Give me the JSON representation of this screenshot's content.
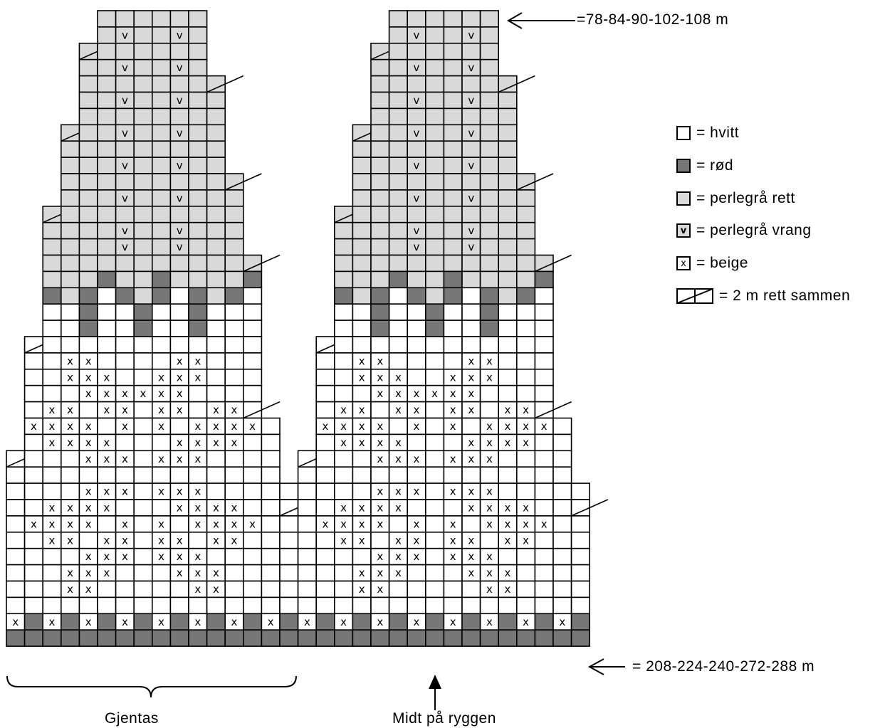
{
  "colors": {
    "white": "#ffffff",
    "red": "#777777",
    "grey": "#d9d9d9",
    "line": "#000000"
  },
  "top_count": "=78-84-90-102-108 m",
  "bottom_count": "=  208-224-240-272-288 m",
  "repeat_label": "Gjentas",
  "center_label": "Midt på ryggen",
  "legend": [
    {
      "symbol": "white",
      "text": "= hvitt"
    },
    {
      "symbol": "red",
      "text": "= rød"
    },
    {
      "symbol": "grey",
      "text": "= perlegrå rett"
    },
    {
      "symbol": "grey-v",
      "mark": "v",
      "text": "= perlegrå vrang"
    },
    {
      "symbol": "white-x",
      "mark": "x",
      "text": "= beige"
    },
    {
      "symbol": "decrease",
      "text": "= 2 m rett sammen"
    }
  ],
  "chart_data": {
    "type": "knitting-chart",
    "repeats": 2,
    "stitches_per_repeat": 16,
    "rows": 39,
    "cell_codes": {
      "W": "hvitt",
      "R": "rød",
      "G": "perlegrå rett",
      "V": "perlegrå vrang",
      "X": "beige",
      "D": "2 m rett sammen"
    },
    "pattern_rows_top_to_bottom": [
      "     GGGGGG     ",
      "     GVGGVG     ",
      "    DGGGGGG     ",
      "    GGVGGVG     ",
      "    GGGGGGGD    ",
      "    GGVGGVGG    ",
      "    GGGGGGGG    ",
      "   DGGVGGVGG    ",
      "   GGGGGGGGG    ",
      "   GGGVGGVGG    ",
      "   GGGGGGGGGD   ",
      "   GGGVGGVGGG   ",
      "  DGGGGGGGGGG   ",
      "  GGGGVGGVGGG   ",
      "  GGGGVGGVGGG   ",
      "  GGGGGGGGGGGD  ",
      "  GGGRGGRGGGGR  ",
      "  RGRWRGRWRGRW  ",
      "  WWRWWRWWRWWW  ",
      "  WWRWWRWWRWWW  ",
      " DWWWWWWWWWWWW  ",
      " WWXXWWWWXXWWW  ",
      " WWXXXWWXXXWWW  ",
      " WWWXXXXXXWWWW  ",
      " WXXWXXWXXWXXD  ",
      " XXXXWXWXWXXXXW ",
      " WXXXXWWWXXXXWW ",
      "DWWWXXXWXXXWWWW ",
      "WWWWWWWWWWWWWWW ",
      "WWWWXXXWXXXWWWWW",
      "WWXXXXWWWXXXXWWD",
      "WXXXXWXWXWXXXXWW",
      "WWXXWXXWXXWXXWWW",
      "WWWWXXXWXXXWWWWW",
      "WWWXXXWWWXXXWWWW",
      "WWWXXWWWWWXXWWWW",
      "WWWWWWWWWWWWWWWW",
      "XRXRXRXRXRXRXRXR",
      "RRRRRRRRRRRRRRRR"
    ]
  }
}
